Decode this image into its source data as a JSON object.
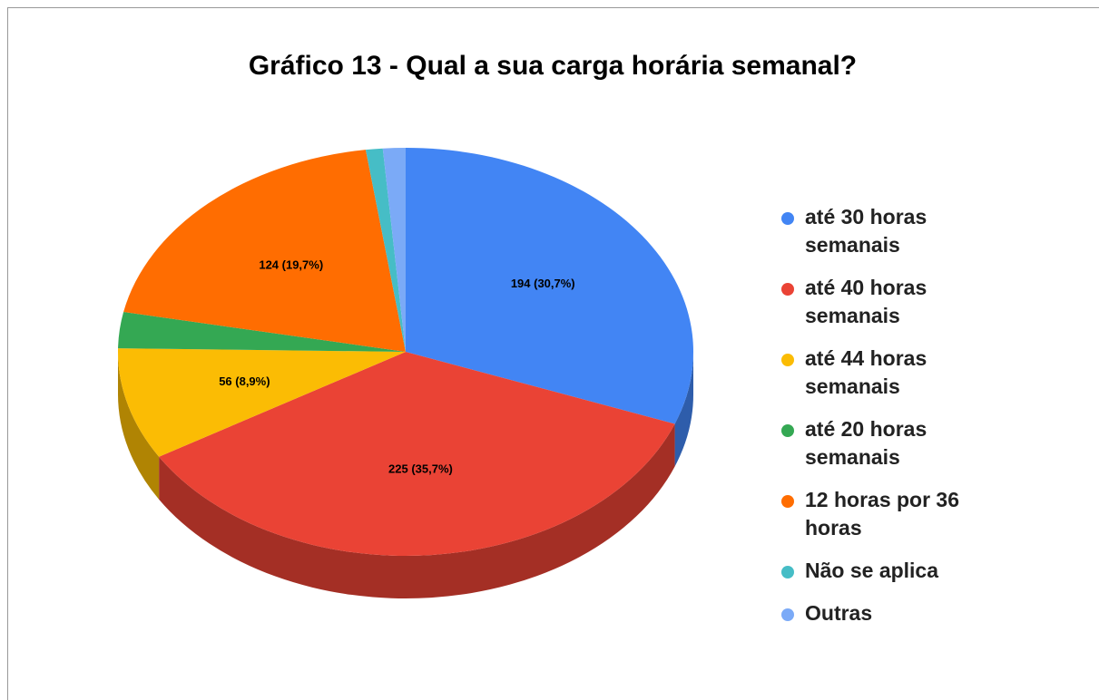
{
  "chart_data": {
    "type": "pie3d",
    "title": "Gráfico 13 - Qual a sua carga horária semanal?",
    "categories": [
      "até 30 horas semanais",
      "até 40 horas semanais",
      "até 44 horas semanais",
      "até 20 horas semanais",
      "12 horas por 36 horas",
      "Não se aplica",
      "Outras"
    ],
    "values": [
      194,
      225,
      56,
      18,
      124,
      6,
      8
    ],
    "value_labels": [
      "194 (30,7%)",
      "225 (35,7%)",
      "56 (8,9%)",
      null,
      "124 (19,7%)",
      null,
      null
    ],
    "colors": [
      "#4285f4",
      "#ea4335",
      "#fbbc04",
      "#34a853",
      "#ff6d01",
      "#46bdc6",
      "#7baaf7"
    ],
    "legend": "right"
  }
}
